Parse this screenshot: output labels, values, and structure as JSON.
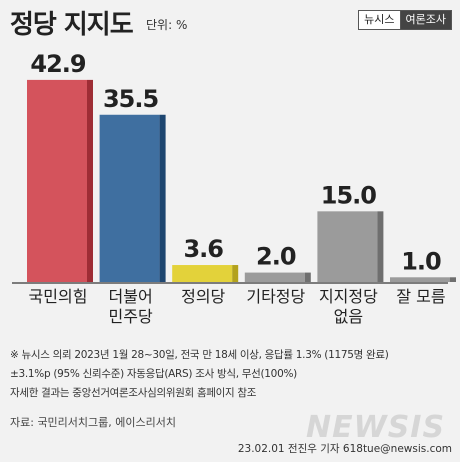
{
  "header": {
    "title": "정당 지지도",
    "unit": "단위: %"
  },
  "brand": {
    "left": "뉴시스",
    "right": "여론조사"
  },
  "colors": {
    "gray": "#9b9b9b",
    "gray_side": "#6f6f6f",
    "red": "#d4535c",
    "red_side": "#9e2d35",
    "blue": "#3f6fa0",
    "blue_side": "#1e4670",
    "yellow": "#e3d23a",
    "yellow_side": "#b3a21d"
  },
  "chart_data": {
    "type": "bar",
    "categories": [
      "국민의힘",
      "더불어\n민주당",
      "정의당",
      "기타정당",
      "지지정당\n없음",
      "잘 모름"
    ],
    "values": [
      42.9,
      35.5,
      3.6,
      2.0,
      15.0,
      1.0
    ],
    "value_labels": [
      "42.9",
      "35.5",
      "3.6",
      "2.0",
      "15.0",
      "1.0"
    ],
    "ylim": [
      0,
      45
    ],
    "colors": [
      "red",
      "blue",
      "yellow",
      "gray",
      "gray",
      "gray"
    ]
  },
  "notes": [
    "※ 뉴시스 의뢰 2023년 1월 28~30일, 전국 만 18세 이상, 응답률 1.3% (1175명 완료)",
    "±3.1%p (95% 신뢰수준) 자동응답(ARS) 조사 방식, 무선(100%)",
    "자세한 결과는 중앙선거여론조사심의위원회 홈페이지 참조"
  ],
  "source": "자료: 국민리서치그룹, 에이스리서치",
  "credit": "23.02.01 전진우 기자 618tue@newsis.com",
  "watermark": "NEWSIS"
}
